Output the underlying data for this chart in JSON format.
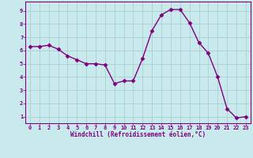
{
  "x": [
    0,
    1,
    2,
    3,
    4,
    5,
    6,
    7,
    8,
    9,
    10,
    11,
    12,
    13,
    14,
    15,
    16,
    17,
    18,
    19,
    20,
    21,
    22,
    23
  ],
  "y": [
    6.3,
    6.3,
    6.4,
    6.1,
    5.6,
    5.3,
    5.0,
    5.0,
    4.9,
    3.5,
    3.7,
    3.7,
    5.4,
    7.5,
    8.7,
    9.1,
    9.1,
    8.1,
    6.6,
    5.8,
    4.0,
    1.6,
    0.9,
    1.0
  ],
  "line_color": "#800080",
  "marker": "D",
  "markersize": 2.5,
  "linewidth": 1.0,
  "xlabel": "Windchill (Refroidissement éolien,°C)",
  "xlabel_color": "#800080",
  "ylabel_ticks": [
    1,
    2,
    3,
    4,
    5,
    6,
    7,
    8,
    9
  ],
  "xticks": [
    0,
    1,
    2,
    3,
    4,
    5,
    6,
    7,
    8,
    9,
    10,
    11,
    12,
    13,
    14,
    15,
    16,
    17,
    18,
    19,
    20,
    21,
    22,
    23
  ],
  "ylim": [
    0.5,
    9.7
  ],
  "xlim": [
    -0.5,
    23.5
  ],
  "bg_color": "#c8eaec",
  "grid_color": "#aacfd3",
  "tick_color": "#800080",
  "spine_color": "#800080"
}
